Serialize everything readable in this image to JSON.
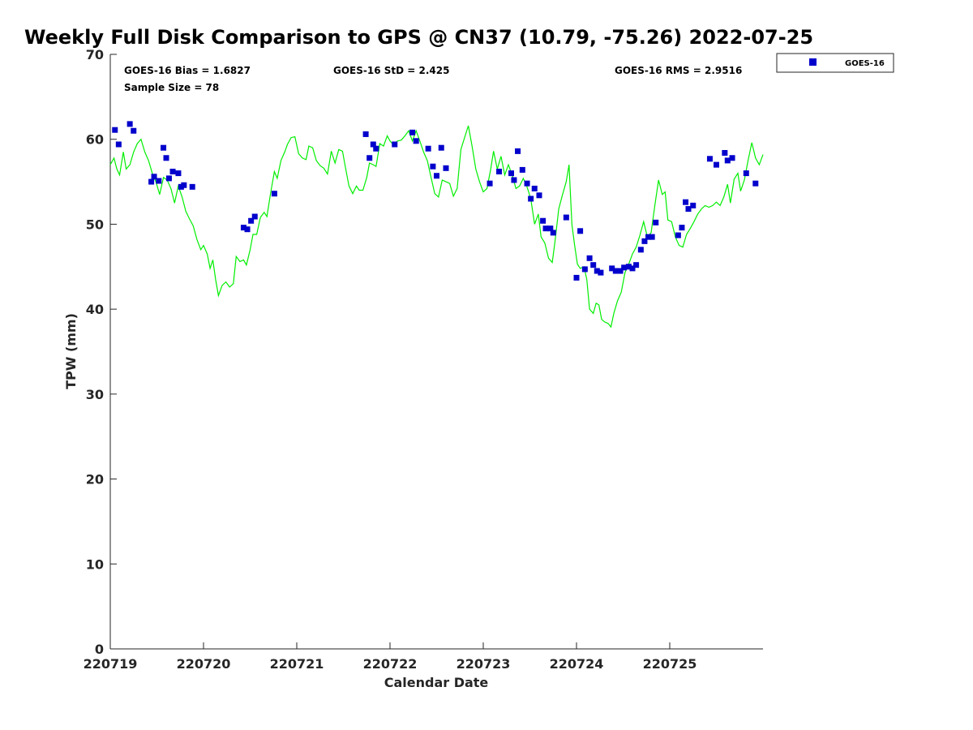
{
  "chart_data": {
    "type": "scatter",
    "title": "Weekly Full Disk Comparison to GPS @ CN37 (10.79, -75.26) 2022-07-25",
    "xlabel": "Calendar Date",
    "ylabel": "TPW (mm)",
    "xlim": [
      0,
      7
    ],
    "ylim": [
      0,
      70
    ],
    "x_tick_values": [
      0,
      1,
      2,
      3,
      4,
      5,
      6
    ],
    "x_tick_labels": [
      "220719",
      "220720",
      "220721",
      "220722",
      "220723",
      "220724",
      "220725"
    ],
    "y_ticks": [
      0,
      10,
      20,
      30,
      40,
      50,
      60,
      70
    ],
    "stats": {
      "bias": "GOES-16 Bias = 1.6827",
      "std": "GOES-16 StD = 2.425",
      "rms": "GOES-16 RMS = 2.9516",
      "sample": "Sample Size = 78"
    },
    "legend": {
      "position": "top-right-outside",
      "entries": [
        "GOES-16"
      ]
    },
    "colors": {
      "goes": "#0000cc",
      "gps": "#00ee00",
      "axis": "#262626"
    },
    "series": [
      {
        "name": "GOES-16",
        "marker": "square",
        "points": [
          [
            0.05,
            61.1
          ],
          [
            0.09,
            59.4
          ],
          [
            0.21,
            61.8
          ],
          [
            0.25,
            61.0
          ],
          [
            0.44,
            55.0
          ],
          [
            0.47,
            55.6
          ],
          [
            0.52,
            55.1
          ],
          [
            0.57,
            59.0
          ],
          [
            0.6,
            57.8
          ],
          [
            0.63,
            55.4
          ],
          [
            0.67,
            56.2
          ],
          [
            0.73,
            56.0
          ],
          [
            0.76,
            54.4
          ],
          [
            0.79,
            54.6
          ],
          [
            0.88,
            54.4
          ],
          [
            1.43,
            49.6
          ],
          [
            1.47,
            49.4
          ],
          [
            1.51,
            50.4
          ],
          [
            1.55,
            50.9
          ],
          [
            1.76,
            53.6
          ],
          [
            2.74,
            60.6
          ],
          [
            2.78,
            57.8
          ],
          [
            2.82,
            59.4
          ],
          [
            2.85,
            58.9
          ],
          [
            3.05,
            59.4
          ],
          [
            3.24,
            60.8
          ],
          [
            3.28,
            59.8
          ],
          [
            3.41,
            58.9
          ],
          [
            3.46,
            56.8
          ],
          [
            3.5,
            55.7
          ],
          [
            3.55,
            59.0
          ],
          [
            3.6,
            56.6
          ],
          [
            4.07,
            54.8
          ],
          [
            4.17,
            56.2
          ],
          [
            4.3,
            56.0
          ],
          [
            4.33,
            55.2
          ],
          [
            4.37,
            58.6
          ],
          [
            4.42,
            56.4
          ],
          [
            4.47,
            54.8
          ],
          [
            4.51,
            53.0
          ],
          [
            4.55,
            54.2
          ],
          [
            4.6,
            53.4
          ],
          [
            4.64,
            50.4
          ],
          [
            4.67,
            49.5
          ],
          [
            4.72,
            49.5
          ],
          [
            4.75,
            49.0
          ],
          [
            4.89,
            50.8
          ],
          [
            5.0,
            43.7
          ],
          [
            5.04,
            49.2
          ],
          [
            5.09,
            44.7
          ],
          [
            5.14,
            46.0
          ],
          [
            5.18,
            45.2
          ],
          [
            5.22,
            44.5
          ],
          [
            5.26,
            44.3
          ],
          [
            5.38,
            44.8
          ],
          [
            5.42,
            44.5
          ],
          [
            5.47,
            44.5
          ],
          [
            5.51,
            44.9
          ],
          [
            5.56,
            45.0
          ],
          [
            5.6,
            44.8
          ],
          [
            5.64,
            45.2
          ],
          [
            5.69,
            47.0
          ],
          [
            5.73,
            48.0
          ],
          [
            5.77,
            48.5
          ],
          [
            5.81,
            48.5
          ],
          [
            5.85,
            50.2
          ],
          [
            6.09,
            48.7
          ],
          [
            6.13,
            49.6
          ],
          [
            6.17,
            52.6
          ],
          [
            6.2,
            51.8
          ],
          [
            6.25,
            52.2
          ],
          [
            6.43,
            57.7
          ],
          [
            6.5,
            57.0
          ],
          [
            6.59,
            58.4
          ],
          [
            6.62,
            57.5
          ],
          [
            6.67,
            57.8
          ],
          [
            6.82,
            56.0
          ],
          [
            6.92,
            54.8
          ]
        ]
      },
      {
        "name": "GPS",
        "marker": "line",
        "points": [
          [
            0.0,
            57.0
          ],
          [
            0.04,
            57.8
          ],
          [
            0.07,
            56.5
          ],
          [
            0.1,
            55.8
          ],
          [
            0.14,
            58.5
          ],
          [
            0.17,
            56.5
          ],
          [
            0.21,
            57.0
          ],
          [
            0.25,
            58.5
          ],
          [
            0.29,
            59.5
          ],
          [
            0.33,
            60.0
          ],
          [
            0.37,
            58.5
          ],
          [
            0.41,
            57.5
          ],
          [
            0.45,
            56.0
          ],
          [
            0.49,
            55.0
          ],
          [
            0.53,
            53.5
          ],
          [
            0.57,
            55.5
          ],
          [
            0.61,
            55.2
          ],
          [
            0.65,
            54.2
          ],
          [
            0.69,
            52.5
          ],
          [
            0.73,
            54.5
          ],
          [
            0.77,
            53.2
          ],
          [
            0.81,
            51.5
          ],
          [
            0.85,
            50.6
          ],
          [
            0.89,
            49.8
          ],
          [
            0.93,
            48.2
          ],
          [
            0.97,
            47.0
          ],
          [
            1.0,
            47.5
          ],
          [
            1.04,
            46.5
          ],
          [
            1.07,
            44.8
          ],
          [
            1.1,
            45.8
          ],
          [
            1.13,
            43.5
          ],
          [
            1.16,
            41.6
          ],
          [
            1.2,
            42.8
          ],
          [
            1.24,
            43.2
          ],
          [
            1.28,
            42.6
          ],
          [
            1.32,
            43.0
          ],
          [
            1.35,
            46.2
          ],
          [
            1.39,
            45.6
          ],
          [
            1.43,
            45.8
          ],
          [
            1.46,
            45.2
          ],
          [
            1.5,
            47.0
          ],
          [
            1.53,
            48.8
          ],
          [
            1.57,
            48.8
          ],
          [
            1.61,
            50.8
          ],
          [
            1.65,
            51.4
          ],
          [
            1.68,
            50.9
          ],
          [
            1.72,
            53.7
          ],
          [
            1.76,
            56.2
          ],
          [
            1.79,
            55.4
          ],
          [
            1.83,
            57.5
          ],
          [
            1.87,
            58.5
          ],
          [
            1.9,
            59.4
          ],
          [
            1.94,
            60.2
          ],
          [
            1.98,
            60.3
          ],
          [
            2.02,
            58.3
          ],
          [
            2.06,
            57.8
          ],
          [
            2.1,
            57.6
          ],
          [
            2.13,
            59.2
          ],
          [
            2.17,
            59.0
          ],
          [
            2.21,
            57.5
          ],
          [
            2.25,
            56.9
          ],
          [
            2.29,
            56.6
          ],
          [
            2.33,
            55.9
          ],
          [
            2.37,
            58.6
          ],
          [
            2.41,
            57.2
          ],
          [
            2.45,
            58.8
          ],
          [
            2.49,
            58.6
          ],
          [
            2.52,
            56.8
          ],
          [
            2.56,
            54.5
          ],
          [
            2.6,
            53.6
          ],
          [
            2.64,
            54.5
          ],
          [
            2.67,
            54.0
          ],
          [
            2.71,
            54.0
          ],
          [
            2.75,
            55.5
          ],
          [
            2.78,
            57.2
          ],
          [
            2.82,
            57.0
          ],
          [
            2.85,
            56.8
          ],
          [
            2.89,
            59.5
          ],
          [
            2.93,
            59.2
          ],
          [
            2.97,
            60.4
          ],
          [
            3.0,
            59.8
          ],
          [
            3.04,
            59.3
          ],
          [
            3.08,
            59.8
          ],
          [
            3.12,
            59.9
          ],
          [
            3.16,
            60.4
          ],
          [
            3.2,
            61.0
          ],
          [
            3.24,
            59.8
          ],
          [
            3.28,
            61.0
          ],
          [
            3.32,
            59.8
          ],
          [
            3.36,
            58.5
          ],
          [
            3.4,
            57.5
          ],
          [
            3.44,
            55.5
          ],
          [
            3.48,
            53.6
          ],
          [
            3.52,
            53.2
          ],
          [
            3.56,
            55.2
          ],
          [
            3.6,
            55.0
          ],
          [
            3.64,
            54.8
          ],
          [
            3.68,
            53.3
          ],
          [
            3.72,
            54.2
          ],
          [
            3.76,
            58.8
          ],
          [
            3.8,
            60.2
          ],
          [
            3.84,
            61.6
          ],
          [
            3.88,
            59.2
          ],
          [
            3.92,
            56.5
          ],
          [
            3.96,
            55.0
          ],
          [
            4.0,
            53.8
          ],
          [
            4.04,
            54.2
          ],
          [
            4.08,
            56.5
          ],
          [
            4.11,
            58.6
          ],
          [
            4.15,
            56.5
          ],
          [
            4.19,
            58.0
          ],
          [
            4.23,
            55.8
          ],
          [
            4.27,
            57.0
          ],
          [
            4.31,
            55.8
          ],
          [
            4.35,
            54.2
          ],
          [
            4.39,
            54.5
          ],
          [
            4.43,
            55.4
          ],
          [
            4.47,
            54.4
          ],
          [
            4.51,
            53.0
          ],
          [
            4.55,
            50.0
          ],
          [
            4.59,
            51.2
          ],
          [
            4.62,
            48.5
          ],
          [
            4.66,
            47.8
          ],
          [
            4.7,
            46.0
          ],
          [
            4.74,
            45.5
          ],
          [
            4.77,
            48.0
          ],
          [
            4.81,
            51.8
          ],
          [
            4.85,
            53.5
          ],
          [
            4.89,
            55.0
          ],
          [
            4.92,
            57.0
          ],
          [
            4.95,
            50.0
          ],
          [
            4.98,
            47.5
          ],
          [
            5.01,
            45.3
          ],
          [
            5.04,
            44.8
          ],
          [
            5.08,
            45.0
          ],
          [
            5.11,
            43.5
          ],
          [
            5.14,
            40.0
          ],
          [
            5.18,
            39.5
          ],
          [
            5.21,
            40.7
          ],
          [
            5.24,
            40.5
          ],
          [
            5.27,
            38.8
          ],
          [
            5.3,
            38.5
          ],
          [
            5.34,
            38.3
          ],
          [
            5.37,
            37.9
          ],
          [
            5.4,
            39.5
          ],
          [
            5.44,
            41.0
          ],
          [
            5.48,
            42.0
          ],
          [
            5.52,
            44.3
          ],
          [
            5.56,
            45.3
          ],
          [
            5.6,
            46.5
          ],
          [
            5.64,
            47.3
          ],
          [
            5.68,
            48.7
          ],
          [
            5.72,
            50.3
          ],
          [
            5.76,
            48.5
          ],
          [
            5.8,
            49.0
          ],
          [
            5.84,
            52.2
          ],
          [
            5.88,
            55.2
          ],
          [
            5.92,
            53.5
          ],
          [
            5.95,
            53.8
          ],
          [
            5.98,
            50.5
          ],
          [
            6.02,
            50.3
          ],
          [
            6.06,
            48.5
          ],
          [
            6.1,
            47.5
          ],
          [
            6.14,
            47.3
          ],
          [
            6.18,
            48.8
          ],
          [
            6.22,
            49.5
          ],
          [
            6.26,
            50.3
          ],
          [
            6.3,
            51.2
          ],
          [
            6.34,
            51.8
          ],
          [
            6.38,
            52.2
          ],
          [
            6.42,
            52.0
          ],
          [
            6.46,
            52.2
          ],
          [
            6.5,
            52.6
          ],
          [
            6.54,
            52.2
          ],
          [
            6.58,
            53.2
          ],
          [
            6.62,
            54.7
          ],
          [
            6.65,
            52.5
          ],
          [
            6.69,
            55.3
          ],
          [
            6.73,
            56.0
          ],
          [
            6.76,
            53.9
          ],
          [
            6.8,
            55.2
          ],
          [
            6.84,
            57.5
          ],
          [
            6.88,
            59.6
          ],
          [
            6.92,
            57.8
          ],
          [
            6.96,
            57.0
          ],
          [
            7.0,
            58.2
          ]
        ]
      }
    ]
  }
}
